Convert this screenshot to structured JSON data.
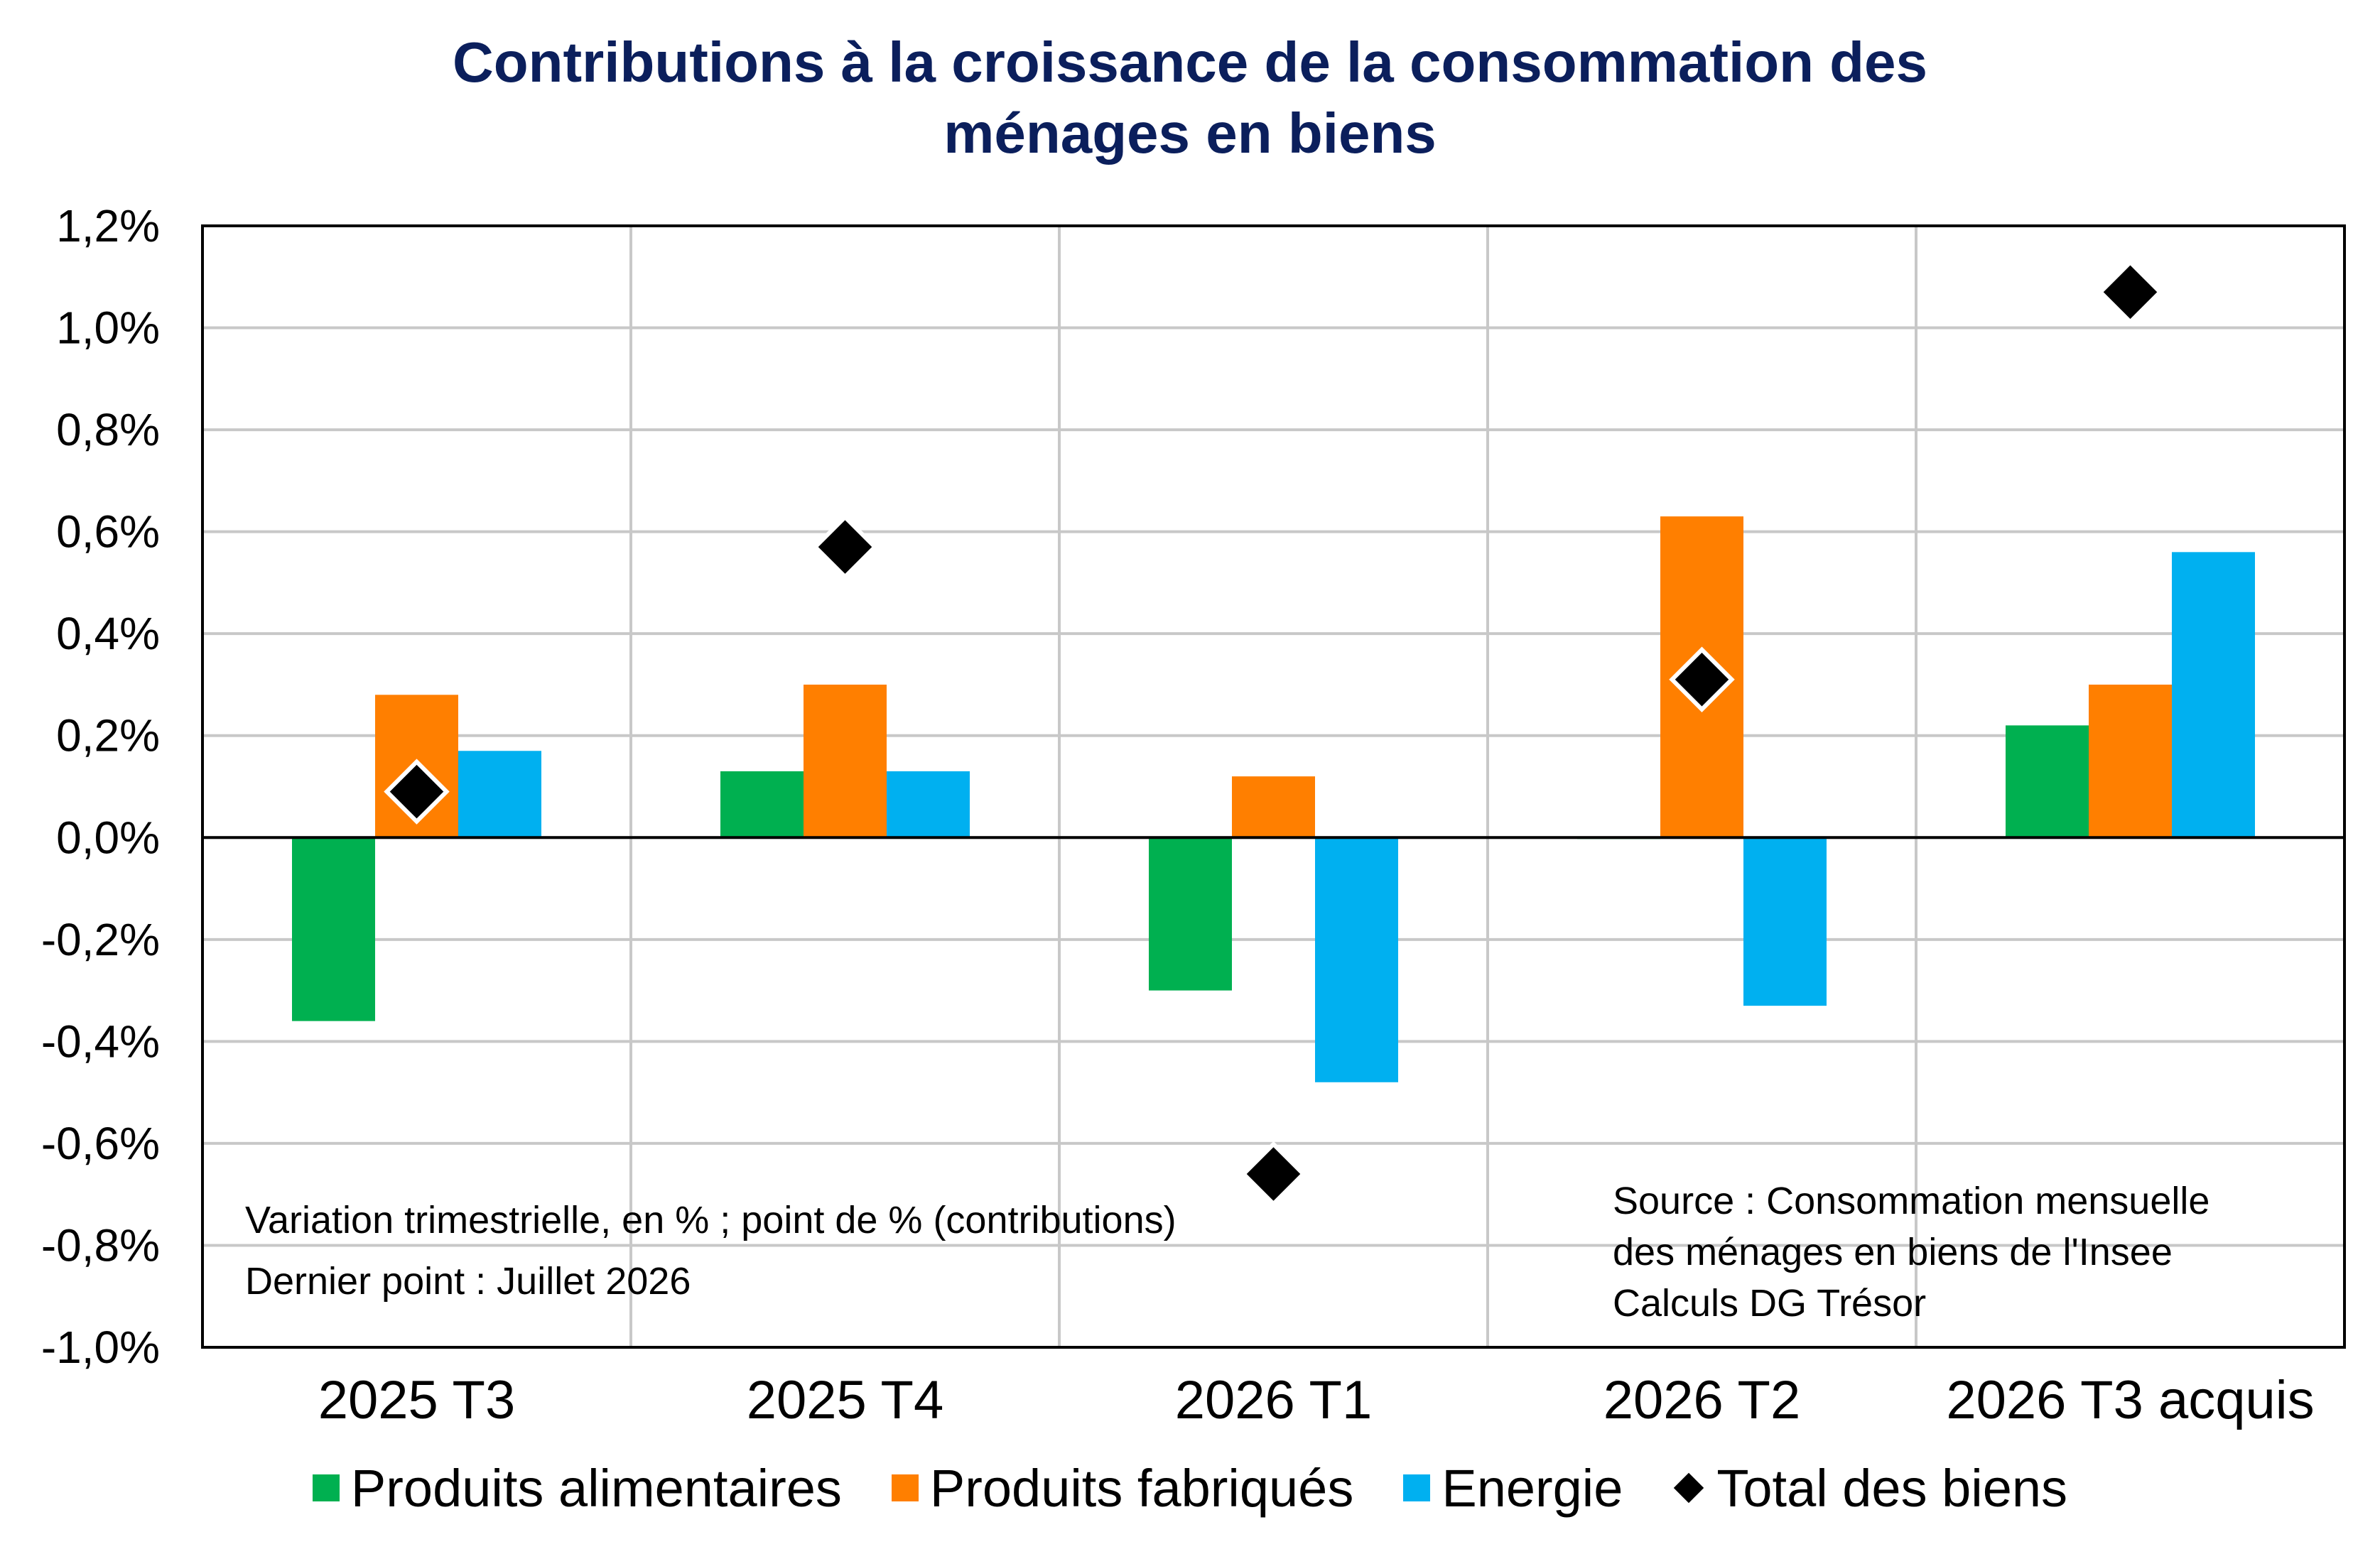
{
  "chart_data": {
    "type": "bar",
    "title_line1": "Contributions à la croissance de la consommation des",
    "title_line2": "ménages en biens",
    "categories": [
      "2025 T3",
      "2025 T4",
      "2026 T1",
      "2026 T2",
      "2026 T3 acquis"
    ],
    "series": [
      {
        "name": "Produits alimentaires",
        "color": "#00b050",
        "kind": "bar",
        "values": [
          -0.36,
          0.13,
          -0.3,
          0.0,
          0.22
        ]
      },
      {
        "name": "Produits fabriqués",
        "color": "#ff7f00",
        "kind": "bar",
        "values": [
          0.28,
          0.3,
          0.12,
          0.63,
          0.3
        ]
      },
      {
        "name": "Energie",
        "color": "#00b0f0",
        "kind": "bar",
        "values": [
          0.17,
          0.13,
          -0.48,
          -0.33,
          0.56
        ]
      },
      {
        "name": "Total des biens",
        "color": "#000000",
        "kind": "marker",
        "values": [
          0.09,
          0.57,
          -0.66,
          0.31,
          1.07
        ]
      }
    ],
    "ylim": [
      -1.0,
      1.2
    ],
    "yticks": [
      1.2,
      1.0,
      0.8,
      0.6,
      0.4,
      0.2,
      0.0,
      -0.2,
      -0.4,
      -0.6,
      -0.8,
      -1.0
    ],
    "ytick_labels": [
      "1,2%",
      "1,0%",
      "0,8%",
      "0,6%",
      "0,4%",
      "0,2%",
      "0,0%",
      "-0,2%",
      "-0,4%",
      "-0,6%",
      "-0,8%",
      "-1,0%"
    ],
    "grid": true,
    "legend_position": "bottom",
    "note_left": [
      "Variation trimestrielle, en % ; point de % (contributions)",
      "Dernier point : Juillet 2026"
    ],
    "note_right": [
      "Source : Consommation mensuelle",
      "des ménages en biens de l'Insee",
      "Calculs DG Trésor"
    ]
  }
}
